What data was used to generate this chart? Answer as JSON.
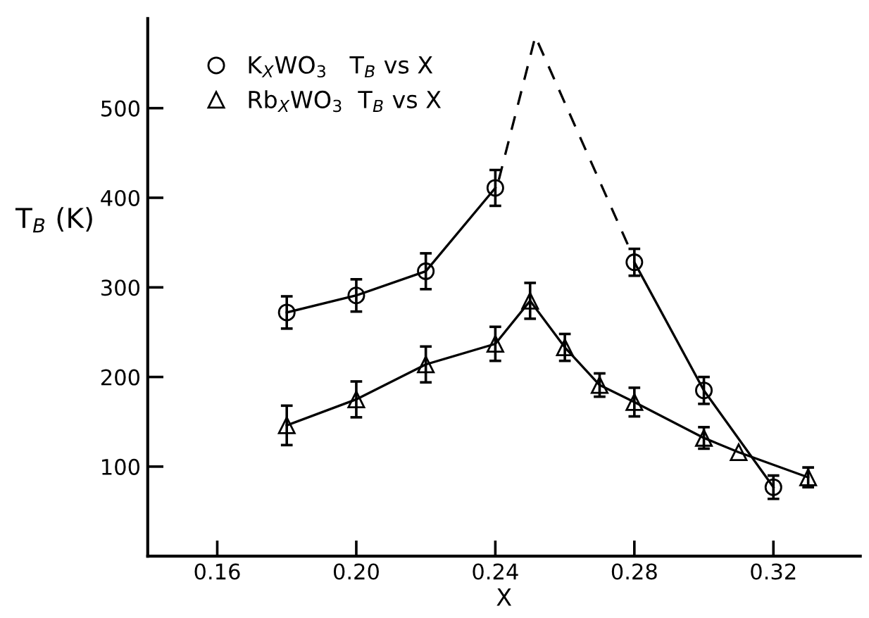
{
  "chart_data": {
    "type": "line",
    "xlabel": "X",
    "ylabel": "T$_{B}$ (K)",
    "xlim": [
      0.14,
      0.345
    ],
    "ylim": [
      0,
      600
    ],
    "xticks": [
      {
        "value": 0.16,
        "label": "0.16"
      },
      {
        "value": 0.2,
        "label": "0.20"
      },
      {
        "value": 0.24,
        "label": "0.24"
      },
      {
        "value": 0.28,
        "label": "0.28"
      },
      {
        "value": 0.32,
        "label": "0.32"
      }
    ],
    "yticks": [
      100,
      200,
      300,
      400,
      500
    ],
    "grid": false,
    "legend": "top left",
    "series": [
      {
        "name": "K$_{X}$WO$_{3}$   T$_{B}$ vs X",
        "color": "#000000",
        "marker": "circle",
        "line_style": "solid",
        "x": [
          0.18,
          0.2,
          0.22,
          0.24,
          0.26,
          0.28,
          0.3,
          0.32
        ],
        "values": [
          272,
          291,
          318,
          411,
          null,
          328,
          185,
          77
        ],
        "errors": [
          18,
          18,
          20,
          20,
          null,
          15,
          15,
          13
        ]
      },
      {
        "name": "Rb$_{X}$WO$_{3}$  T$_{B}$ vs X",
        "color": "#000000",
        "marker": "triangle",
        "line_style": "solid",
        "x": [
          0.18,
          0.2,
          0.22,
          0.24,
          0.25,
          0.26,
          0.27,
          0.28,
          0.3,
          0.31,
          0.33
        ],
        "values": [
          146,
          175,
          214,
          237,
          285,
          233,
          191,
          172,
          132,
          116,
          88
        ],
        "errors": [
          22,
          20,
          20,
          19,
          20,
          15,
          13,
          16,
          12,
          null,
          11
        ]
      },
      {
        "color": "#000000",
        "marker": "none",
        "line_style": "dashed",
        "x": [
          0.241,
          0.2515,
          0.279
        ],
        "values": [
          420,
          580,
          340
        ]
      }
    ]
  }
}
